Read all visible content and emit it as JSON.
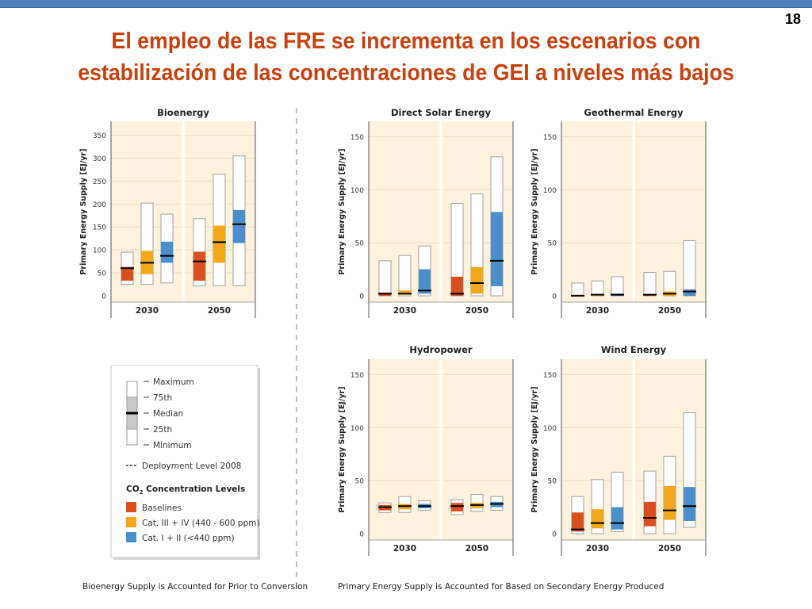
{
  "page_number": "18",
  "title_line1": "El empleo de las FRE se incrementa en los escenarios con",
  "title_line2": "estabilización de las concentraciones de GEI a niveles más bajos",
  "colors": {
    "baselines": "#d94f1e",
    "cat34": "#f3a81c",
    "cat12": "#4a8ecb",
    "panel_bg": "#fcf2dd",
    "title": "#c8410f"
  },
  "legend": {
    "maximum": "Maximum",
    "p75": "75th",
    "median": "Median",
    "p25": "25th",
    "minimum": "Minimum",
    "deployment": "Deployment Level 2008",
    "co2_heading_prefix": "CO",
    "co2_heading_sub": "2",
    "co2_heading_suffix": " Concentration Levels",
    "baselines": "Baselines",
    "cat34": "Cat. III + IV (440 - 600 ppm)",
    "cat12": "Cat. I + II (<440 ppm)"
  },
  "footnote_left": "Bioenergy Supply is Accounted for Prior to Conversion",
  "footnote_right": "Primary Energy Supply is Accounted for Based on Secondary Energy Produced",
  "chart_data": [
    {
      "type": "bar",
      "subtype": "box-range",
      "title": "Bioenergy",
      "ylabel": "Primary Energy Supply [EJ/yr]",
      "ylim": [
        0,
        370
      ],
      "yticks": [
        0,
        50,
        100,
        150,
        200,
        250,
        300,
        350
      ],
      "categories": [
        "2030",
        "2050"
      ],
      "series_names": [
        "Baselines",
        "Cat. III + IV (440 - 600 ppm)",
        "Cat. I + II (<440 ppm)"
      ],
      "boxes": {
        "2030": [
          {
            "min": 25,
            "p25": 33,
            "median": 60,
            "p75": 63,
            "max": 95
          },
          {
            "min": 25,
            "p25": 47,
            "median": 72,
            "p75": 98,
            "max": 202
          },
          {
            "min": 28,
            "p25": 72,
            "median": 87,
            "p75": 118,
            "max": 178
          }
        ],
        "2050": [
          {
            "min": 22,
            "p25": 33,
            "median": 75,
            "p75": 96,
            "max": 168
          },
          {
            "min": 22,
            "p25": 72,
            "median": 117,
            "p75": 153,
            "max": 265
          },
          {
            "min": 22,
            "p25": 115,
            "median": 156,
            "p75": 187,
            "max": 305
          }
        ]
      }
    },
    {
      "type": "bar",
      "subtype": "box-range",
      "title": "Direct Solar Energy",
      "ylabel": "Primary Energy Supply [EJ/yr]",
      "ylim": [
        0,
        160
      ],
      "yticks": [
        0,
        50,
        100,
        150
      ],
      "categories": [
        "2030",
        "2050"
      ],
      "series_names": [
        "Baselines",
        "Cat. III + IV (440 - 600 ppm)",
        "Cat. I + II (<440 ppm)"
      ],
      "boxes": {
        "2030": [
          {
            "min": 0,
            "p25": 0,
            "median": 2,
            "p75": 3,
            "max": 33
          },
          {
            "min": 0,
            "p25": 1,
            "median": 2,
            "p75": 5,
            "max": 38
          },
          {
            "min": 0,
            "p25": 2,
            "median": 5,
            "p75": 25,
            "max": 47
          }
        ],
        "2050": [
          {
            "min": 0,
            "p25": 0,
            "median": 2,
            "p75": 18,
            "max": 87
          },
          {
            "min": 0,
            "p25": 2,
            "median": 12,
            "p75": 27,
            "max": 96
          },
          {
            "min": 0,
            "p25": 9,
            "median": 33,
            "p75": 79,
            "max": 131
          }
        ]
      }
    },
    {
      "type": "bar",
      "subtype": "box-range",
      "title": "Geothermal Energy",
      "ylabel": "Primary Energy Supply [EJ/yr]",
      "ylim": [
        0,
        160
      ],
      "yticks": [
        0,
        50,
        100,
        150
      ],
      "categories": [
        "2030",
        "2050"
      ],
      "series_names": [
        "Baselines",
        "Cat. III + IV (440 - 600 ppm)",
        "Cat. I + II (<440 ppm)"
      ],
      "boxes": {
        "2030": [
          {
            "min": 0,
            "p25": 0,
            "median": 0,
            "p75": 1,
            "max": 12
          },
          {
            "min": 0,
            "p25": 0,
            "median": 1,
            "p75": 1,
            "max": 14
          },
          {
            "min": 0,
            "p25": 0,
            "median": 1,
            "p75": 2,
            "max": 18
          }
        ],
        "2050": [
          {
            "min": 0,
            "p25": 0,
            "median": 1,
            "p75": 1,
            "max": 22
          },
          {
            "min": 0,
            "p25": 0,
            "median": 2,
            "p75": 4,
            "max": 23
          },
          {
            "min": 0,
            "p25": 0,
            "median": 4,
            "p75": 6,
            "max": 52
          }
        ]
      }
    },
    {
      "type": "bar",
      "subtype": "box-range",
      "title": "Hydropower",
      "ylabel": "Primary Energy Supply [EJ/yr]",
      "ylim": [
        0,
        160
      ],
      "yticks": [
        0,
        50,
        100,
        150
      ],
      "categories": [
        "2030",
        "2050"
      ],
      "series_names": [
        "Baselines",
        "Cat. III + IV (440 - 600 ppm)",
        "Cat. I + II (<440 ppm)"
      ],
      "boxes": {
        "2030": [
          {
            "min": 20,
            "p25": 22,
            "median": 25,
            "p75": 27,
            "max": 29
          },
          {
            "min": 20,
            "p25": 23,
            "median": 26,
            "p75": 28,
            "max": 35
          },
          {
            "min": 22,
            "p25": 24,
            "median": 26,
            "p75": 28,
            "max": 31
          }
        ],
        "2050": [
          {
            "min": 18,
            "p25": 21,
            "median": 26,
            "p75": 29,
            "max": 32
          },
          {
            "min": 21,
            "p25": 24,
            "median": 27,
            "p75": 29,
            "max": 37
          },
          {
            "min": 22,
            "p25": 25,
            "median": 28,
            "p75": 30,
            "max": 35
          }
        ]
      }
    },
    {
      "type": "bar",
      "subtype": "box-range",
      "title": "Wind Energy",
      "ylabel": "Primary Energy Supply [EJ/yr]",
      "ylim": [
        0,
        160
      ],
      "yticks": [
        0,
        50,
        100,
        150
      ],
      "categories": [
        "2030",
        "2050"
      ],
      "series_names": [
        "Baselines",
        "Cat. III + IV (440 - 600 ppm)",
        "Cat. I + II (<440 ppm)"
      ],
      "boxes": {
        "2030": [
          {
            "min": 0,
            "p25": 2,
            "median": 4,
            "p75": 20,
            "max": 35
          },
          {
            "min": 0,
            "p25": 5,
            "median": 10,
            "p75": 23,
            "max": 51
          },
          {
            "min": 2,
            "p25": 4,
            "median": 10,
            "p75": 25,
            "max": 58
          }
        ],
        "2050": [
          {
            "min": 0,
            "p25": 7,
            "median": 15,
            "p75": 30,
            "max": 59
          },
          {
            "min": 0,
            "p25": 13,
            "median": 22,
            "p75": 45,
            "max": 73
          },
          {
            "min": 6,
            "p25": 12,
            "median": 26,
            "p75": 44,
            "max": 114
          }
        ]
      }
    }
  ]
}
